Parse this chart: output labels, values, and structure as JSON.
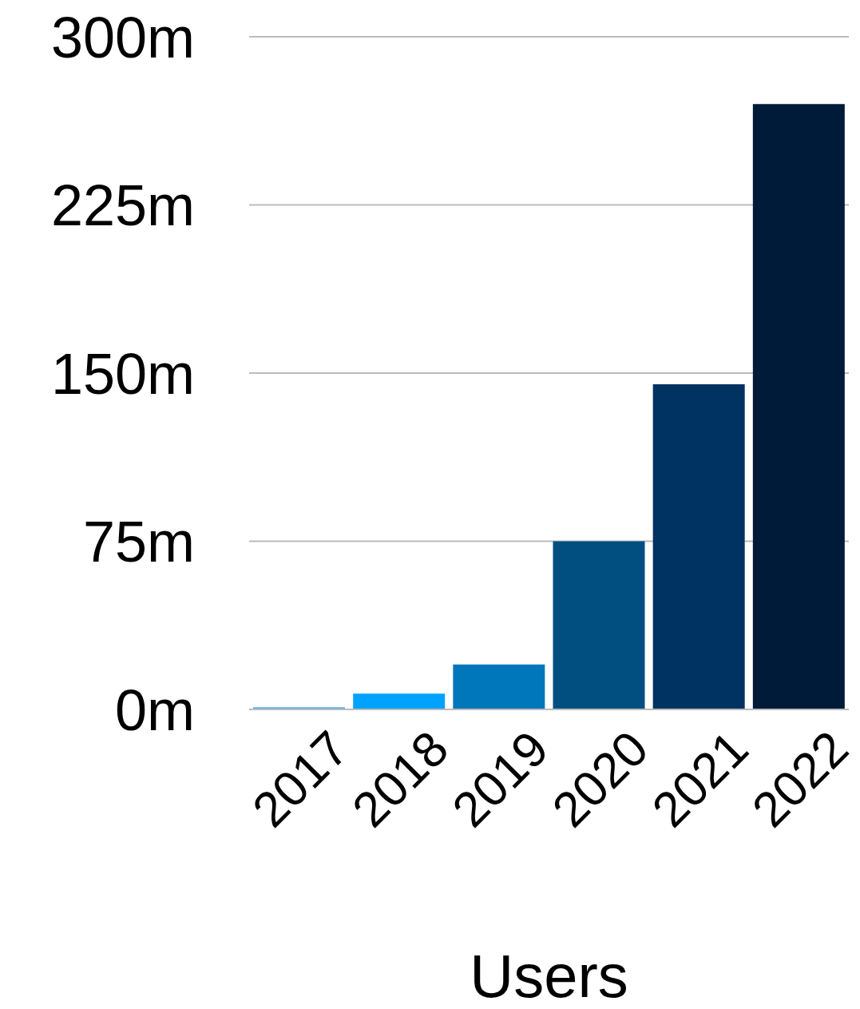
{
  "chart_data": {
    "type": "bar",
    "xlabel": "Users",
    "categories": [
      "2017",
      "2018",
      "2019",
      "2020",
      "2021",
      "2022"
    ],
    "values": [
      1,
      7,
      20,
      75,
      145,
      270
    ],
    "colors": [
      "#5ab4e5",
      "#00a2ff",
      "#0077bb",
      "#004f80",
      "#003262",
      "#001a3a"
    ],
    "ylim": [
      0,
      300
    ],
    "yticks": [
      {
        "value": 0,
        "label": "0m"
      },
      {
        "value": 75,
        "label": "75m"
      },
      {
        "value": 150,
        "label": "150m"
      },
      {
        "value": 225,
        "label": "225m"
      },
      {
        "value": 300,
        "label": "300m"
      }
    ],
    "grid": "y"
  }
}
